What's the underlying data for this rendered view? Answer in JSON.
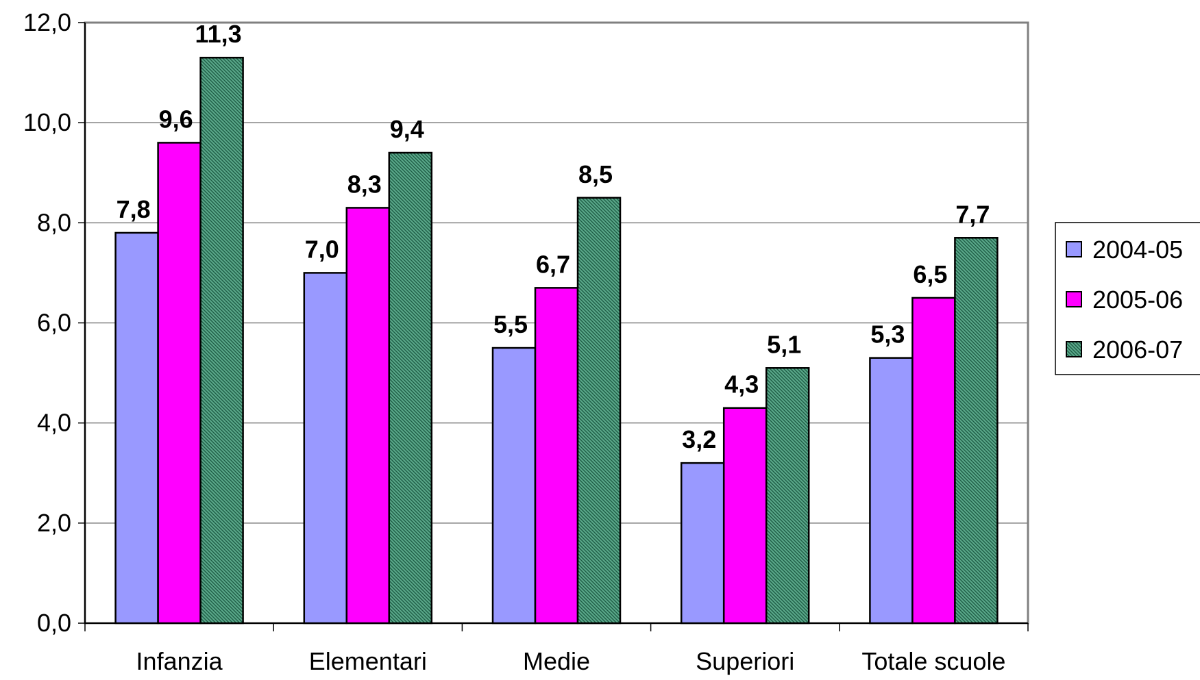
{
  "chart_data": {
    "type": "bar",
    "categories": [
      "Infanzia",
      "Elementari",
      "Medie",
      "Superiori",
      "Totale scuole"
    ],
    "series": [
      {
        "name": "2004-05",
        "values": [
          7.8,
          7.0,
          5.5,
          3.2,
          5.3
        ],
        "labels": [
          "7,8",
          "7,0",
          "5,5",
          "3,2",
          "5,3"
        ],
        "color": "#9999ff",
        "pattern": "solid"
      },
      {
        "name": "2005-06",
        "values": [
          9.6,
          8.3,
          6.7,
          4.3,
          6.5
        ],
        "labels": [
          "9,6",
          "8,3",
          "6,7",
          "4,3",
          "6,5"
        ],
        "color": "#ff00ff",
        "pattern": "solid"
      },
      {
        "name": "2006-07",
        "values": [
          11.3,
          9.4,
          8.5,
          5.1,
          7.7
        ],
        "labels": [
          "11,3",
          "9,4",
          "8,5",
          "5,1",
          "7,7"
        ],
        "color": "#339966",
        "pattern": "hatched"
      }
    ],
    "yticks": [
      "0,0",
      "2,0",
      "4,0",
      "6,0",
      "8,0",
      "10,0",
      "12,0"
    ],
    "ylim": [
      0,
      12
    ],
    "ystep": 2,
    "grid": true,
    "legend_position": "right",
    "title": "",
    "xlabel": "",
    "ylabel": ""
  }
}
